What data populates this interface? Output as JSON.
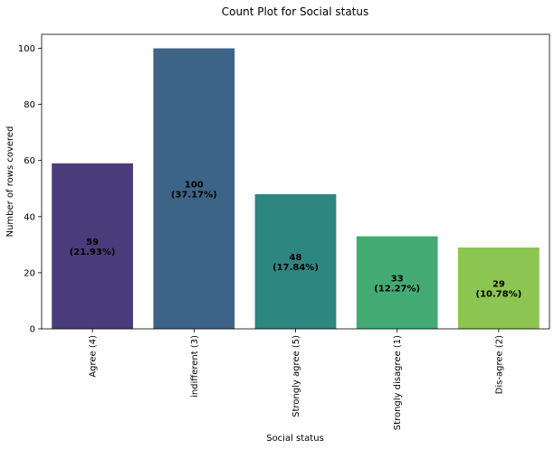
{
  "chart_data": {
    "type": "bar",
    "title": "Count Plot for Social status",
    "xlabel": "Social status",
    "ylabel": "Number of rows covered",
    "categories": [
      "Agree (4)",
      "indifferent (3)",
      "Strongly agree (5)",
      "Strongly disagree (1)",
      "Dis-agree (2)"
    ],
    "values": [
      59,
      100,
      48,
      33,
      29
    ],
    "data_labels": [
      [
        "59",
        "(21.93%)"
      ],
      [
        "100",
        "(37.17%)"
      ],
      [
        "48",
        "(17.84%)"
      ],
      [
        "33",
        "(12.27%)"
      ],
      [
        "29",
        "(10.78%)"
      ]
    ],
    "colors": [
      "#4a3c7a",
      "#3d6486",
      "#2e8680",
      "#44aa74",
      "#8dc553"
    ],
    "ylim": [
      0,
      105
    ],
    "yticks": [
      0,
      20,
      40,
      60,
      80,
      100
    ],
    "grid": false,
    "legend": "none"
  }
}
